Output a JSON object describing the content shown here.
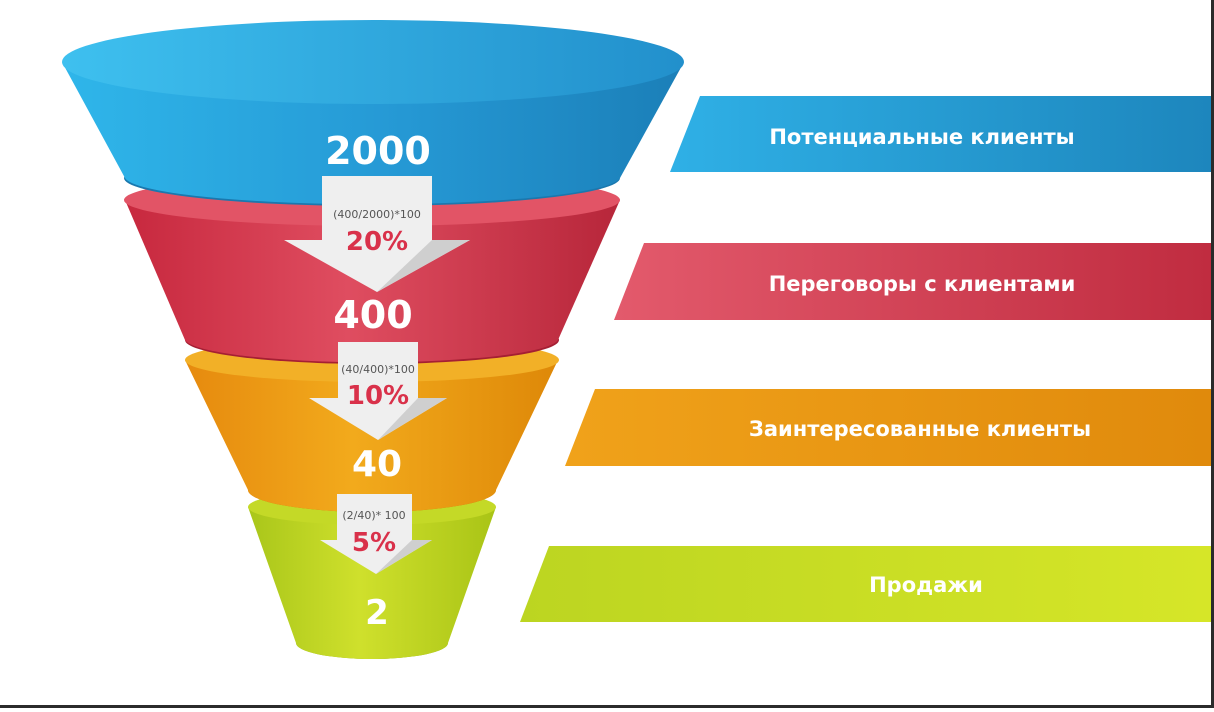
{
  "colors": {
    "blue": "#2a9fd6",
    "red": "#d53d52",
    "orange": "#e89a12",
    "green": "#bcd121",
    "arrow": "#ececec",
    "percent": "#d9314a"
  },
  "funnel": [
    {
      "value": "2000",
      "color": "blue"
    },
    {
      "value": "400",
      "color": "red"
    },
    {
      "value": "40",
      "color": "orange"
    },
    {
      "value": "2",
      "color": "green"
    }
  ],
  "conversions": [
    {
      "formula": "(400/2000)*100",
      "percent": "20%"
    },
    {
      "formula": "(40/400)*100",
      "percent": "10%"
    },
    {
      "formula": "(2/40)* 100",
      "percent": "5%"
    }
  ],
  "stages": [
    {
      "label": "Потенциальные клиенты",
      "color": "blue"
    },
    {
      "label": "Переговоры с клиентами",
      "color": "red"
    },
    {
      "label": "Заинтересованные клиенты",
      "color": "orange"
    },
    {
      "label": "Продажи",
      "color": "green"
    }
  ]
}
